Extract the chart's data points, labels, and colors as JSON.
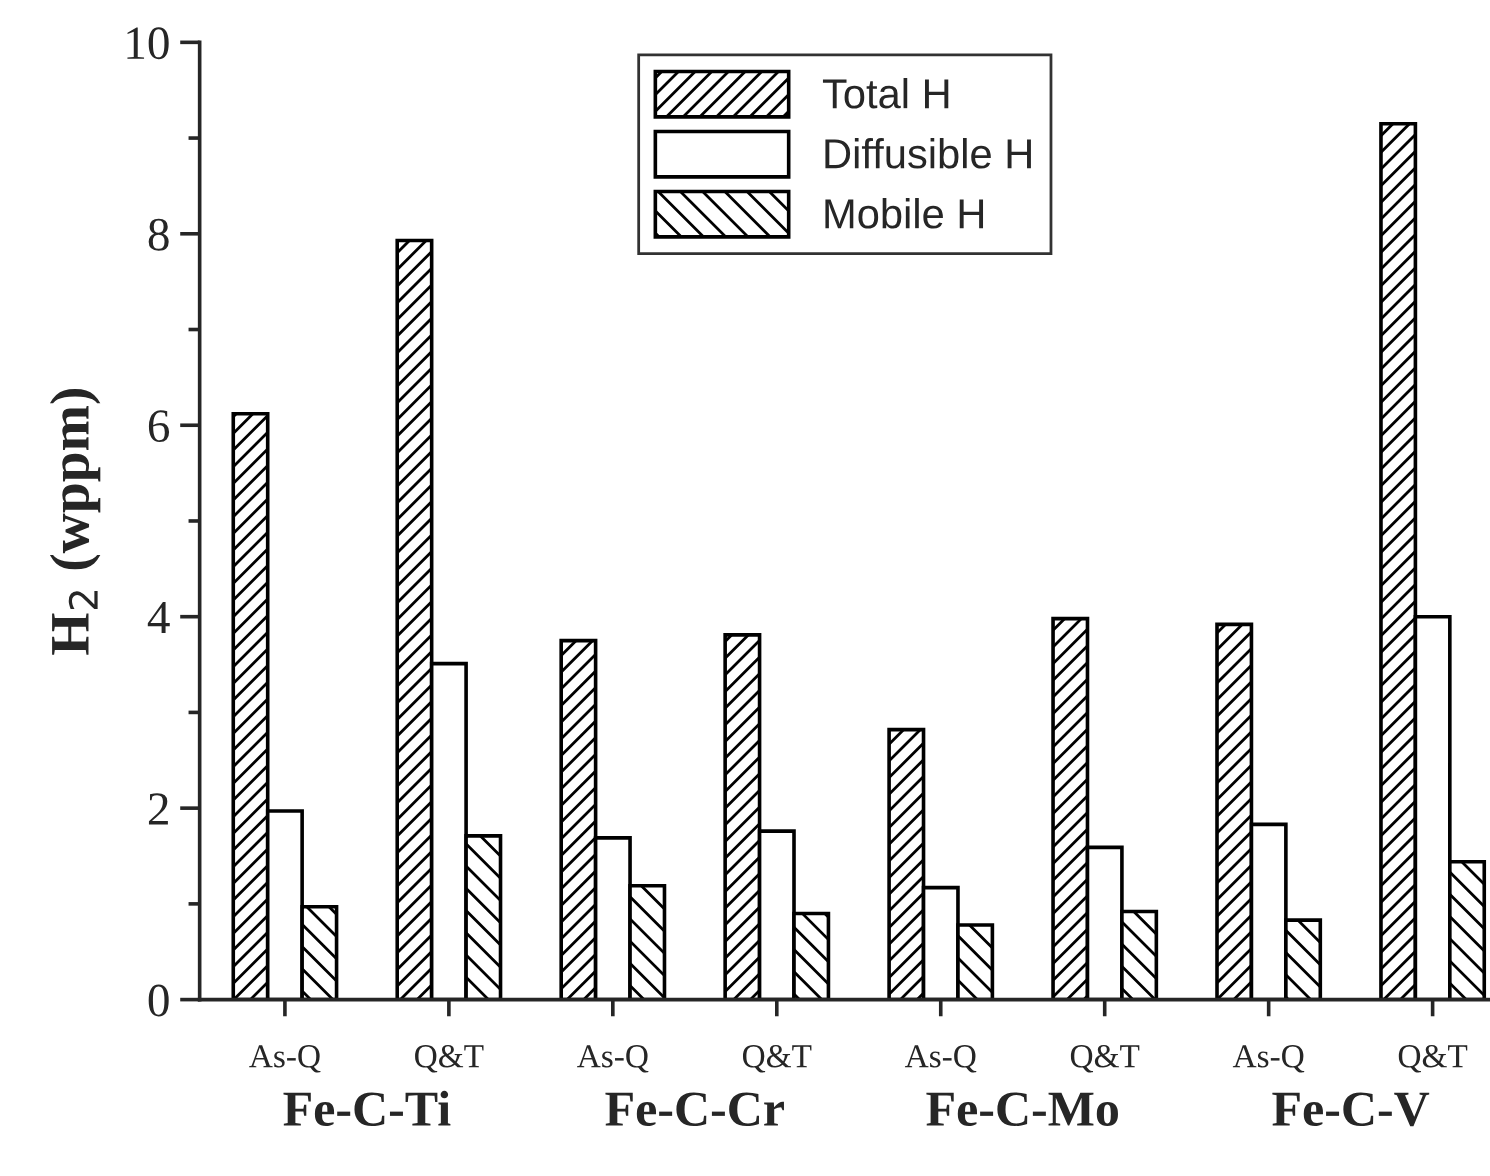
{
  "chart_data": {
    "type": "bar",
    "ylabel": "H$_{2}$ (wppm)",
    "categories": [
      "As-Q",
      "Q&T",
      "As-Q",
      "Q&T",
      "As-Q",
      "Q&T",
      "As-Q",
      "Q&T"
    ],
    "series": [
      {
        "name": "Total H",
        "color": "#000000",
        "values": [
          6.12,
          7.93,
          3.75,
          3.81,
          2.82,
          3.98,
          3.92,
          9.15
        ]
      },
      {
        "name": "Diffusible H",
        "color": "#ffffff",
        "values": [
          1.97,
          3.51,
          1.69,
          1.76,
          1.17,
          1.59,
          1.83,
          4.0
        ]
      },
      {
        "name": "Mobile H",
        "color": "#000000",
        "values": [
          0.97,
          1.71,
          1.19,
          0.9,
          0.78,
          0.92,
          0.83,
          1.44
        ]
      }
    ],
    "annotations": [
      "Fe-C-Ti",
      "Fe-C-Cr",
      "Fe-C-Mo",
      "Fe-C-V"
    ],
    "ylim": [
      0,
      10
    ],
    "yticks": [
      0,
      2,
      4,
      6,
      8,
      10
    ],
    "grid": false,
    "legend": "top"
  }
}
